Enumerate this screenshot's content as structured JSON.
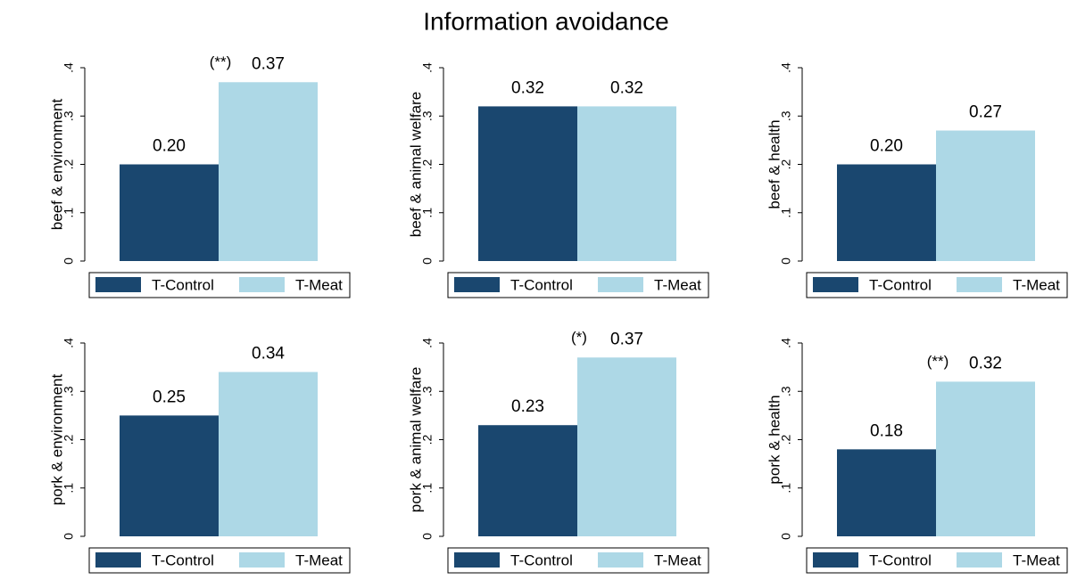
{
  "title": "Information avoidance",
  "chart_data": [
    {
      "type": "bar",
      "ylabel": "beef & environment",
      "ylim": [
        0,
        0.4
      ],
      "yticks": [
        0,
        {
          "value": 0.1,
          "label": ".1"
        },
        {
          "value": 0.2,
          "label": ".2"
        },
        {
          "value": 0.3,
          "label": ".3"
        },
        {
          "value": 0.4,
          "label": ".4"
        }
      ],
      "series": [
        {
          "name": "T-Control",
          "color": "#1a476f",
          "values": [
            0.2
          ],
          "value_labels": [
            "0.20"
          ]
        },
        {
          "name": "T-Meat",
          "color": "#add8e6",
          "values": [
            0.37
          ],
          "value_labels": [
            "0.37"
          ]
        }
      ],
      "annotation": "(**)"
    },
    {
      "type": "bar",
      "ylabel": "beef & animal welfare",
      "ylim": [
        0,
        0.4
      ],
      "yticks": [
        0,
        {
          "value": 0.1,
          "label": ".1"
        },
        {
          "value": 0.2,
          "label": ".2"
        },
        {
          "value": 0.3,
          "label": ".3"
        },
        {
          "value": 0.4,
          "label": ".4"
        }
      ],
      "series": [
        {
          "name": "T-Control",
          "color": "#1a476f",
          "values": [
            0.32
          ],
          "value_labels": [
            "0.32"
          ]
        },
        {
          "name": "T-Meat",
          "color": "#add8e6",
          "values": [
            0.32
          ],
          "value_labels": [
            "0.32"
          ]
        }
      ]
    },
    {
      "type": "bar",
      "ylabel": "beef & health",
      "ylim": [
        0,
        0.4
      ],
      "yticks": [
        0,
        {
          "value": 0.1,
          "label": ".1"
        },
        {
          "value": 0.2,
          "label": ".2"
        },
        {
          "value": 0.3,
          "label": ".3"
        },
        {
          "value": 0.4,
          "label": ".4"
        }
      ],
      "series": [
        {
          "name": "T-Control",
          "color": "#1a476f",
          "values": [
            0.2
          ],
          "value_labels": [
            "0.20"
          ]
        },
        {
          "name": "T-Meat",
          "color": "#add8e6",
          "values": [
            0.27
          ],
          "value_labels": [
            "0.27"
          ]
        }
      ]
    },
    {
      "type": "bar",
      "ylabel": "pork & environment",
      "ylim": [
        0,
        0.4
      ],
      "yticks": [
        0,
        {
          "value": 0.1,
          "label": ".1"
        },
        {
          "value": 0.2,
          "label": ".2"
        },
        {
          "value": 0.3,
          "label": ".3"
        },
        {
          "value": 0.4,
          "label": ".4"
        }
      ],
      "series": [
        {
          "name": "T-Control",
          "color": "#1a476f",
          "values": [
            0.25
          ],
          "value_labels": [
            "0.25"
          ]
        },
        {
          "name": "T-Meat",
          "color": "#add8e6",
          "values": [
            0.34
          ],
          "value_labels": [
            "0.34"
          ]
        }
      ]
    },
    {
      "type": "bar",
      "ylabel": "pork & animal welfare",
      "ylim": [
        0,
        0.4
      ],
      "yticks": [
        0,
        {
          "value": 0.1,
          "label": ".1"
        },
        {
          "value": 0.2,
          "label": ".2"
        },
        {
          "value": 0.3,
          "label": ".3"
        },
        {
          "value": 0.4,
          "label": ".4"
        }
      ],
      "series": [
        {
          "name": "T-Control",
          "color": "#1a476f",
          "values": [
            0.23
          ],
          "value_labels": [
            "0.23"
          ]
        },
        {
          "name": "T-Meat",
          "color": "#add8e6",
          "values": [
            0.37
          ],
          "value_labels": [
            "0.37"
          ]
        }
      ],
      "annotation": "(*)"
    },
    {
      "type": "bar",
      "ylabel": "pork & health",
      "ylim": [
        0,
        0.4
      ],
      "yticks": [
        0,
        {
          "value": 0.1,
          "label": ".1"
        },
        {
          "value": 0.2,
          "label": ".2"
        },
        {
          "value": 0.3,
          "label": ".3"
        },
        {
          "value": 0.4,
          "label": ".4"
        }
      ],
      "series": [
        {
          "name": "T-Control",
          "color": "#1a476f",
          "values": [
            0.18
          ],
          "value_labels": [
            "0.18"
          ]
        },
        {
          "name": "T-Meat",
          "color": "#add8e6",
          "values": [
            0.32
          ],
          "value_labels": [
            "0.32"
          ]
        }
      ],
      "annotation": "(**)"
    }
  ]
}
